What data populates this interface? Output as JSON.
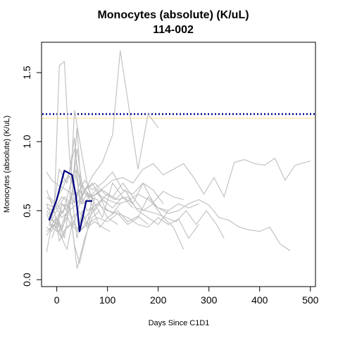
{
  "chart_data": {
    "type": "line",
    "title": "Monocytes (absolute) (K/uL)",
    "subtitle": "114-002",
    "xlabel": "Days Since C1D1",
    "ylabel": "Monocytes (absolute) (K/uL)",
    "xlim": [
      -30,
      510
    ],
    "ylim": [
      -0.05,
      1.72
    ],
    "x_ticks": [
      0,
      100,
      200,
      300,
      400,
      500
    ],
    "y_ticks": [
      0.0,
      0.5,
      1.0,
      1.5
    ],
    "x_tick_labels": [
      "0",
      "100",
      "200",
      "300",
      "400",
      "500"
    ],
    "y_tick_labels": [
      "0.0",
      "0.5",
      "1.0",
      "1.5"
    ],
    "grid": false,
    "reference_lines": [
      {
        "y": 1.2,
        "style": "dotted",
        "color": "#00008b"
      },
      {
        "y": 1.17,
        "style": "solid",
        "color": "#ffe8b0"
      }
    ],
    "colors": {
      "background_series": "#bebebe",
      "highlight_series": "#000080"
    },
    "highlight_series": {
      "x": [
        -15,
        0,
        15,
        30,
        38,
        45,
        58,
        70
      ],
      "y": [
        0.43,
        0.58,
        0.79,
        0.76,
        0.6,
        0.35,
        0.57,
        0.57
      ]
    },
    "background_series": [
      {
        "x": [
          -20,
          -10,
          5,
          15,
          30,
          50,
          70,
          90,
          110,
          130,
          150,
          170,
          190,
          210,
          230,
          250,
          270,
          290,
          310,
          330,
          350,
          370,
          390,
          410,
          430,
          450,
          470,
          500
        ],
        "y": [
          0.78,
          0.72,
          0.68,
          0.66,
          0.62,
          0.64,
          0.6,
          0.66,
          0.72,
          0.74,
          0.7,
          0.8,
          0.84,
          0.76,
          0.8,
          0.84,
          0.74,
          0.62,
          0.74,
          0.6,
          0.85,
          0.87,
          0.84,
          0.83,
          0.88,
          0.72,
          0.83,
          0.86
        ]
      },
      {
        "x": [
          -20,
          -5,
          5,
          15,
          25,
          35,
          45,
          60,
          80,
          100,
          120,
          140,
          160,
          180,
          200,
          220,
          240,
          260,
          280,
          300,
          320,
          340,
          360,
          380,
          400,
          420,
          440,
          460
        ],
        "y": [
          0.52,
          0.5,
          1.55,
          1.58,
          0.9,
          0.55,
          0.7,
          0.6,
          0.62,
          0.58,
          0.55,
          0.57,
          0.62,
          0.58,
          0.52,
          0.48,
          0.5,
          0.55,
          0.58,
          0.54,
          0.45,
          0.43,
          0.38,
          0.36,
          0.35,
          0.38,
          0.26,
          0.21
        ]
      },
      {
        "x": [
          -15,
          -5,
          5,
          20,
          35,
          50,
          70,
          90,
          110,
          125,
          140,
          160,
          180,
          200
        ],
        "y": [
          0.45,
          0.55,
          0.8,
          0.7,
          0.95,
          0.6,
          0.75,
          0.85,
          1.05,
          1.66,
          1.3,
          0.8,
          1.2,
          1.1
        ]
      },
      {
        "x": [
          -20,
          -5,
          10,
          25,
          40,
          55,
          75,
          95,
          115,
          135,
          155,
          175,
          195,
          215,
          235,
          255,
          275,
          295,
          315,
          330
        ],
        "y": [
          0.6,
          0.55,
          0.45,
          0.5,
          0.55,
          0.65,
          0.7,
          0.62,
          0.58,
          0.65,
          0.52,
          0.5,
          0.48,
          0.45,
          0.42,
          0.5,
          0.4,
          0.5,
          0.4,
          0.3
        ]
      },
      {
        "x": [
          -20,
          -10,
          0,
          10,
          20,
          30,
          40,
          50,
          60,
          70
        ],
        "y": [
          0.2,
          0.4,
          0.45,
          0.35,
          0.5,
          0.6,
          0.3,
          0.5,
          0.4,
          0.6
        ]
      },
      {
        "x": [
          -15,
          0,
          15,
          30,
          45,
          60,
          80,
          100,
          120,
          140,
          160,
          180,
          200,
          220,
          240,
          260,
          280
        ],
        "y": [
          0.4,
          0.5,
          0.6,
          0.55,
          0.65,
          0.5,
          0.55,
          0.62,
          0.58,
          0.6,
          0.5,
          0.45,
          0.4,
          0.5,
          0.55,
          0.52,
          0.55
        ]
      },
      {
        "x": [
          -10,
          5,
          20,
          35,
          45,
          60,
          80,
          100,
          120,
          140,
          160,
          180,
          200,
          220
        ],
        "y": [
          0.3,
          0.45,
          0.55,
          0.4,
          0.35,
          0.42,
          0.55,
          0.5,
          0.48,
          0.4,
          0.45,
          0.6,
          0.52,
          0.5
        ]
      },
      {
        "x": [
          -20,
          -5,
          10,
          25,
          40,
          55,
          70,
          90,
          110,
          130,
          150,
          170,
          190,
          210,
          230,
          250
        ],
        "y": [
          0.65,
          0.5,
          0.6,
          0.55,
          0.8,
          0.65,
          0.6,
          0.65,
          0.6,
          0.7,
          0.6,
          0.5,
          0.55,
          0.45,
          0.38,
          0.22
        ]
      },
      {
        "x": [
          -20,
          -10,
          0,
          10,
          25,
          35,
          45,
          55,
          70,
          85,
          100
        ],
        "y": [
          0.55,
          0.45,
          0.6,
          0.65,
          0.78,
          1.03,
          0.55,
          0.65,
          0.7,
          0.6,
          0.55
        ]
      },
      {
        "x": [
          -15,
          0,
          10,
          20,
          30,
          40,
          50,
          60,
          75,
          90,
          110,
          130,
          150,
          170,
          190,
          210
        ],
        "y": [
          0.4,
          0.35,
          0.55,
          0.5,
          0.45,
          0.48,
          0.62,
          0.68,
          0.55,
          0.45,
          0.7,
          0.6,
          0.55,
          0.7,
          0.65,
          0.55
        ]
      },
      {
        "x": [
          -20,
          -10,
          5,
          15,
          25,
          35,
          45,
          60,
          75
        ],
        "y": [
          0.48,
          0.38,
          0.42,
          0.3,
          0.55,
          0.25,
          0.12,
          0.35,
          0.6
        ]
      },
      {
        "x": [
          -20,
          -5,
          10,
          20,
          30,
          40,
          50,
          65,
          80,
          100,
          120
        ],
        "y": [
          0.5,
          0.42,
          0.38,
          0.45,
          0.6,
          1.1,
          0.55,
          0.6,
          0.58,
          0.45,
          0.4
        ]
      },
      {
        "x": [
          -15,
          0,
          10,
          25,
          35,
          50,
          60,
          70
        ],
        "y": [
          0.45,
          0.4,
          0.55,
          0.52,
          1.23,
          0.9,
          0.7,
          0.58
        ]
      },
      {
        "x": [
          -20,
          -5,
          10,
          20,
          30,
          45,
          60,
          80,
          100,
          120,
          140,
          160,
          180,
          200,
          220,
          240,
          260,
          280
        ],
        "y": [
          0.35,
          0.4,
          0.3,
          0.38,
          0.42,
          0.35,
          0.4,
          0.45,
          0.42,
          0.48,
          0.45,
          0.4,
          0.38,
          0.45,
          0.4,
          0.44,
          0.3,
          0.4
        ]
      },
      {
        "x": [
          -15,
          -5,
          5,
          15,
          30,
          40,
          55,
          70,
          85
        ],
        "y": [
          0.42,
          0.5,
          0.28,
          0.36,
          0.4,
          0.08,
          0.3,
          0.45,
          0.5
        ]
      },
      {
        "x": [
          -20,
          -5,
          10,
          25,
          40,
          55,
          70,
          90,
          110,
          130,
          150,
          170,
          190,
          210,
          230,
          250
        ],
        "y": [
          0.55,
          0.52,
          0.7,
          0.75,
          0.6,
          0.72,
          0.65,
          0.7,
          0.78,
          0.65,
          0.62,
          0.7,
          0.56,
          0.64,
          0.6,
          0.58
        ]
      },
      {
        "x": [
          -10,
          5,
          20,
          30,
          40,
          50,
          65,
          80,
          95,
          110,
          125
        ],
        "y": [
          0.4,
          0.48,
          0.52,
          0.62,
          0.95,
          0.68,
          0.6,
          0.66,
          0.52,
          0.48,
          0.55
        ]
      },
      {
        "x": [
          -20,
          -10,
          0,
          10,
          20,
          30,
          40,
          50,
          60,
          75,
          90,
          105
        ],
        "y": [
          0.38,
          0.35,
          0.44,
          0.3,
          0.22,
          0.4,
          0.35,
          0.45,
          0.38,
          0.42,
          0.38,
          0.35
        ]
      },
      {
        "x": [
          -15,
          0,
          12,
          24,
          36,
          48,
          60,
          75,
          90,
          110,
          130,
          150
        ],
        "y": [
          0.6,
          0.55,
          0.48,
          0.65,
          0.8,
          0.55,
          0.62,
          0.5,
          0.58,
          0.52,
          0.6,
          0.52
        ]
      },
      {
        "x": [
          -20,
          -8,
          5,
          18,
          30,
          42,
          55,
          70,
          85,
          100,
          120,
          140,
          160,
          180
        ],
        "y": [
          0.32,
          0.4,
          0.35,
          0.48,
          0.38,
          0.5,
          0.44,
          0.52,
          0.38,
          0.45,
          0.5,
          0.42,
          0.46,
          0.4
        ]
      }
    ]
  }
}
